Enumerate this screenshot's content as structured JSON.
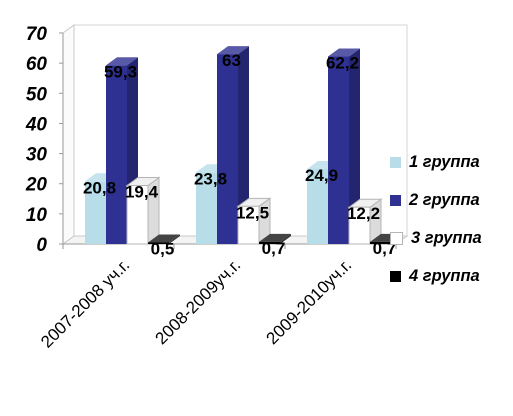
{
  "chart_data": {
    "type": "bar",
    "categories": [
      "2007-2008 уч.г.",
      "2008-2009уч.г.",
      "2009-2010уч.г."
    ],
    "series": [
      {
        "name": "1 группа",
        "values": [
          20.8,
          23.8,
          24.9
        ],
        "labels": [
          "20,8",
          "23,8",
          "24,9"
        ],
        "color": "#b7dde8"
      },
      {
        "name": "2 группа",
        "values": [
          59.3,
          63,
          62.2
        ],
        "labels": [
          "59,3",
          "63",
          "62,2"
        ],
        "color": "#2e3192"
      },
      {
        "name": "3 группа",
        "values": [
          19.4,
          12.5,
          12.2
        ],
        "labels": [
          "19,4",
          "12,5",
          "12,2"
        ],
        "color": "#ffffff"
      },
      {
        "name": "4 группа",
        "values": [
          0.5,
          0.7,
          0.7
        ],
        "labels": [
          "0,5",
          "0,7",
          "0,7"
        ],
        "color": "#000000"
      }
    ],
    "y_ticks": [
      "0",
      "10",
      "20",
      "30",
      "40",
      "50",
      "60",
      "70"
    ],
    "ylim": [
      0,
      70
    ],
    "grid": false,
    "legend_position": "right",
    "three_d": true,
    "title": "",
    "xlabel": "",
    "ylabel": ""
  }
}
